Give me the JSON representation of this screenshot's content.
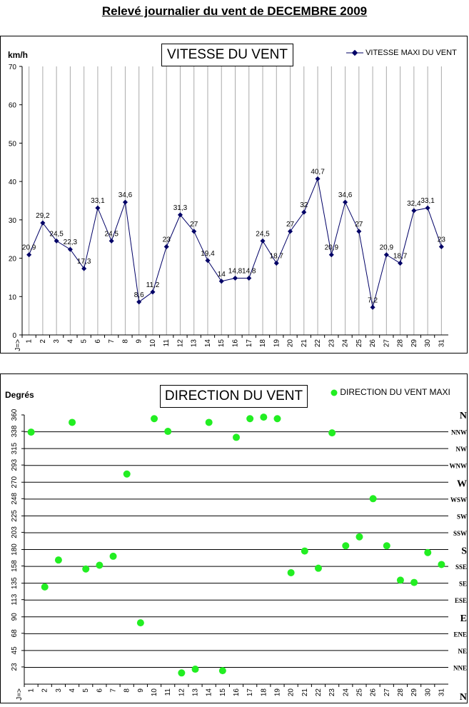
{
  "page_title": "Relevé journalier du vent de DECEMBRE 2009",
  "chart_data": [
    {
      "type": "line",
      "title": "VITESSE DU VENT",
      "ylabel": "km/h",
      "x_axis_marker": "J=>",
      "legend": "VITESSE MAXI DU VENT",
      "legend_position": "top-right",
      "ylim": [
        0,
        70
      ],
      "yticks": [
        "0",
        "10",
        "20",
        "30",
        "40",
        "50",
        "60",
        "70"
      ],
      "categories": [
        "1",
        "2",
        "3",
        "4",
        "5",
        "6",
        "7",
        "8",
        "9",
        "10",
        "11",
        "12",
        "13",
        "14",
        "15",
        "16",
        "17",
        "18",
        "19",
        "20",
        "21",
        "22",
        "23",
        "24",
        "25",
        "26",
        "27",
        "28",
        "29",
        "30",
        "31"
      ],
      "values": [
        20.9,
        29.2,
        24.5,
        22.3,
        17.3,
        33.1,
        24.5,
        34.6,
        8.6,
        11.2,
        23,
        31.3,
        27,
        19.4,
        14,
        14.8,
        14.8,
        24.5,
        18.7,
        27,
        32,
        40.7,
        20.9,
        34.6,
        27,
        7.2,
        20.9,
        18.7,
        32.4,
        33.1,
        23
      ],
      "data_labels": [
        "20,9",
        "29,2",
        "24,5",
        "22,3",
        "17,3",
        "33,1",
        "24,5",
        "34,6",
        "8,6",
        "11,2",
        "23",
        "31,3",
        "27",
        "19,4",
        "14",
        "14,8",
        "14,8",
        "24,5",
        "18,7",
        "27",
        "32",
        "40,7",
        "20,9",
        "34,6",
        "27",
        "7,2",
        "20,9",
        "18,7",
        "32,4",
        "33,1",
        "23"
      ],
      "grid": "vertical",
      "colors": {
        "line": "#000066",
        "grid": "#aaaaaa"
      }
    },
    {
      "type": "scatter",
      "title": "DIRECTION DU VENT",
      "ylabel": "Degrés",
      "x_axis_marker": "J=>",
      "legend": "DIRECTION DU VENT MAXI",
      "legend_position": "top-right",
      "ylim": [
        0,
        360
      ],
      "yticks": [
        "23",
        "45",
        "68",
        "90",
        "113",
        "135",
        "158",
        "180",
        "203",
        "225",
        "248",
        "270",
        "293",
        "315",
        "338",
        "360"
      ],
      "compass": [
        "N",
        "NNE",
        "NE",
        "ENE",
        "E",
        "ESE",
        "SE",
        "SSE",
        "S",
        "SSW",
        "SW",
        "WSW",
        "W",
        "WNW",
        "NW",
        "NNW",
        "N"
      ],
      "categories": [
        "1",
        "2",
        "3",
        "4",
        "5",
        "6",
        "7",
        "8",
        "9",
        "10",
        "11",
        "12",
        "13",
        "14",
        "15",
        "16",
        "17",
        "18",
        "19",
        "20",
        "21",
        "22",
        "23",
        "24",
        "25",
        "26",
        "27",
        "28",
        "29",
        "30",
        "31"
      ],
      "values": [
        337,
        130,
        166,
        350,
        154,
        159,
        171,
        281,
        82,
        355,
        338,
        15,
        20,
        350,
        18,
        330,
        355,
        357,
        355,
        149,
        178,
        155,
        336,
        185,
        197,
        248,
        185,
        139,
        136,
        176,
        160
      ],
      "grid": "horizontal",
      "colors": {
        "marker": "#22ee22",
        "grid": "#000000"
      }
    }
  ]
}
